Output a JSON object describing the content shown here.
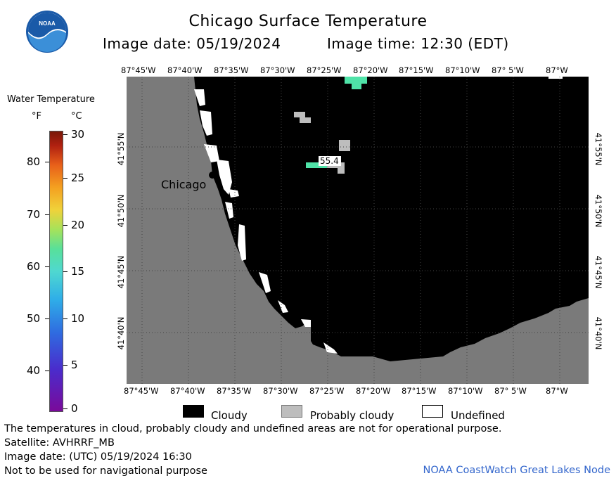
{
  "header": {
    "title": "Chicago Surface Temperature",
    "image_date_label": "Image date: 05/19/2024",
    "image_time_label": "Image time: 12:30 (EDT)"
  },
  "logo": {
    "text": "NOAA"
  },
  "colorbar": {
    "title": "Water Temperature",
    "unit_f": "°F",
    "unit_c": "°C",
    "f_ticks": [
      "80",
      "70",
      "60",
      "50",
      "40"
    ],
    "c_ticks": [
      "30",
      "25",
      "20",
      "15",
      "10",
      "5",
      "0"
    ]
  },
  "map": {
    "lon_labels": [
      "87°45'W",
      "87°40'W",
      "87°35'W",
      "87°30'W",
      "87°25'W",
      "87°20'W",
      "87°15'W",
      "87°10'W",
      "87° 5'W",
      "87°W"
    ],
    "lon_labels_bottom": [
      "87°45'W",
      "87°40'W",
      "87°35'W",
      "87°30'W",
      "87°25'W",
      "87°20'W",
      "87°15'W",
      "87°10'W",
      "87° 5'W",
      "87°W"
    ],
    "lat_labels": [
      "41°55'N",
      "41°50'N",
      "41°45'N",
      "41°40'N"
    ],
    "city_label": "Chicago",
    "temp_label": "55.4",
    "colors": {
      "land": "#7a7a7a",
      "cloudy": "#000000",
      "probably_cloudy": "#bdbdbd",
      "undefined": "#ffffff",
      "water_warm": "#4fe3a8"
    }
  },
  "key": {
    "cloudy": "Cloudy",
    "probably_cloudy": "Probably cloudy",
    "undefined": "Undefined"
  },
  "notes": {
    "line1": "The temperatures in cloud, probably cloudy and undefined areas are not for operational purpose.",
    "line2": "Satellite: AVHRRF_MB",
    "line3": "Image date: (UTC) 05/19/2024  16:30",
    "line4": "Not to be used for navigational purpose",
    "credit": "NOAA CoastWatch Great Lakes Node"
  }
}
